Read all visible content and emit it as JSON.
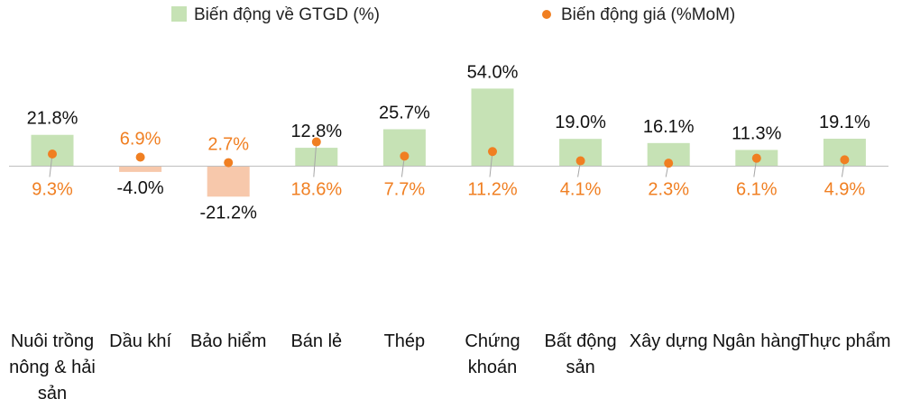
{
  "chart_data": {
    "type": "bar",
    "title": "",
    "xlabel": "",
    "ylabel": "",
    "categories": [
      [
        "Nuôi trồng",
        "nông & hải",
        "sản"
      ],
      [
        "Dầu khí"
      ],
      [
        "Bảo hiểm"
      ],
      [
        "Bán lẻ"
      ],
      [
        "Thép"
      ],
      [
        "Chứng",
        "khoán"
      ],
      [
        "Bất động",
        "sản"
      ],
      [
        "Xây dựng"
      ],
      [
        "Ngân hàng"
      ],
      [
        "Thực phẩm"
      ]
    ],
    "series": [
      {
        "name": "Biến động về GTGD (%)",
        "kind": "bar",
        "values": [
          21.8,
          -4.0,
          -21.2,
          12.8,
          25.7,
          54.0,
          19.0,
          16.1,
          11.3,
          19.1
        ],
        "labels": [
          "21.8%",
          "-4.0%",
          "-21.2%",
          "12.8%",
          "25.7%",
          "54.0%",
          "19.0%",
          "16.1%",
          "11.3%",
          "19.1%"
        ],
        "color_positive": "#c6e2b5",
        "color_negative": "#f7c8ab"
      },
      {
        "name": "Biến động giá (%MoM)",
        "kind": "scatter",
        "values": [
          9.3,
          6.9,
          2.7,
          18.6,
          7.7,
          11.2,
          4.1,
          2.3,
          6.1,
          4.9
        ],
        "labels": [
          "9.3%",
          "6.9%",
          "2.7%",
          "18.6%",
          "7.7%",
          "11.2%",
          "4.1%",
          "2.3%",
          "6.1%",
          "4.9%"
        ],
        "color": "#f07f22"
      }
    ],
    "legend_position": "top",
    "grid": false
  }
}
